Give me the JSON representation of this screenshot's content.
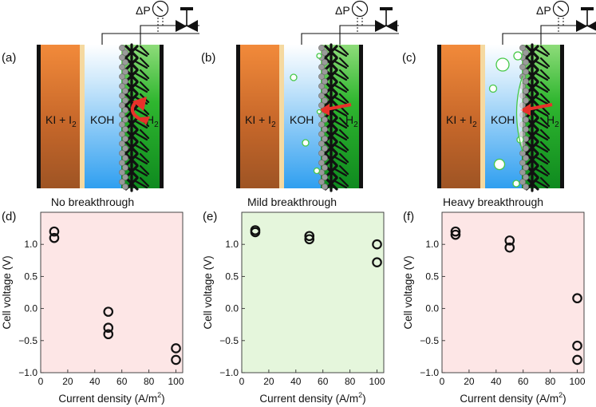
{
  "figure": {
    "panels": [
      {
        "label": "(a)",
        "caption": "No breakthrough",
        "delta_p": "ΔP",
        "left_text_main": "KI + I",
        "left_text_sub": "2",
        "middle_text": "KOH",
        "right_text_main": "H",
        "right_text_sub": "2",
        "breakthrough": "none"
      },
      {
        "label": "(b)",
        "caption": "Mild breakthrough",
        "delta_p": "ΔP",
        "left_text_main": "KI + I",
        "left_text_sub": "2",
        "middle_text": "KOH",
        "right_text_main": "H",
        "right_text_sub": "2",
        "breakthrough": "mild"
      },
      {
        "label": "(c)",
        "caption": "Heavy breakthrough",
        "delta_p": "ΔP",
        "left_text_main": "KI + I",
        "left_text_sub": "2",
        "middle_text": "KOH",
        "right_text_main": "H",
        "right_text_sub": "2",
        "breakthrough": "heavy"
      }
    ],
    "colors": {
      "iodide": "#c8682a",
      "separator": "#f5d9a0",
      "koh": "#66bff0",
      "h2": "#2eb82e",
      "arrow": "#e8312a",
      "bubble": "#46c846",
      "electrode": "#111111",
      "particle": "#9a9a9a"
    }
  },
  "chart_data": [
    {
      "label": "(d)",
      "type": "scatter",
      "xlabel": "Current density (A/m",
      "xlabel_sup": "2",
      "xlabel_end": ")",
      "ylabel": "Cell voltage (V)",
      "xlim": [
        0,
        105
      ],
      "ylim": [
        -1.0,
        1.5
      ],
      "xticks": [
        0,
        20,
        40,
        60,
        80,
        100
      ],
      "yticks": [
        -1.0,
        -0.5,
        0.0,
        0.5,
        1.0
      ],
      "ytick_labels": [
        "−1.0",
        "−0.5",
        "0.0",
        "0.5",
        "1.0"
      ],
      "background": "#fde6e6",
      "points": [
        [
          10,
          1.2
        ],
        [
          10,
          1.1
        ],
        [
          50,
          -0.05
        ],
        [
          50,
          -0.3
        ],
        [
          50,
          -0.4
        ],
        [
          100,
          -0.62
        ],
        [
          100,
          -0.8
        ]
      ]
    },
    {
      "label": "(e)",
      "type": "scatter",
      "xlabel": "Current density (A/m",
      "xlabel_sup": "2",
      "xlabel_end": ")",
      "ylabel": "Cell voltage (V)",
      "xlim": [
        0,
        105
      ],
      "ylim": [
        -1.0,
        1.5
      ],
      "xticks": [
        0,
        20,
        40,
        60,
        80,
        100
      ],
      "yticks": [
        -1.0,
        -0.5,
        0.0,
        0.5,
        1.0
      ],
      "ytick_labels": [
        "−1.0",
        "−0.5",
        "0.0",
        "0.5",
        "1.0"
      ],
      "background": "#e5f6dc",
      "points": [
        [
          10,
          1.22
        ],
        [
          10,
          1.19
        ],
        [
          50,
          1.13
        ],
        [
          50,
          1.08
        ],
        [
          100,
          1.0
        ],
        [
          100,
          0.72
        ]
      ]
    },
    {
      "label": "(f)",
      "type": "scatter",
      "xlabel": "Current density (A/m",
      "xlabel_sup": "2",
      "xlabel_end": ")",
      "ylabel": "Cell voltage (V)",
      "xlim": [
        0,
        105
      ],
      "ylim": [
        -1.0,
        1.5
      ],
      "xticks": [
        0,
        20,
        40,
        60,
        80,
        100
      ],
      "yticks": [
        -1.0,
        -0.5,
        0.0,
        0.5,
        1.0
      ],
      "ytick_labels": [
        "−1.0",
        "−0.5",
        "0.0",
        "0.5",
        "1.0"
      ],
      "background": "#fde6e6",
      "points": [
        [
          10,
          1.2
        ],
        [
          10,
          1.15
        ],
        [
          50,
          1.06
        ],
        [
          50,
          0.95
        ],
        [
          100,
          0.16
        ],
        [
          100,
          -0.58
        ],
        [
          100,
          -0.8
        ]
      ]
    }
  ]
}
